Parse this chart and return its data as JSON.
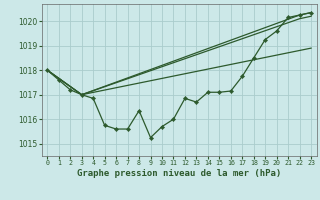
{
  "title": "Graphe pression niveau de la mer (hPa)",
  "bg_color": "#cce8e8",
  "grid_color": "#aacccc",
  "line_color": "#2d5a2d",
  "marker_color": "#2d5a2d",
  "xlim": [
    -0.5,
    23.5
  ],
  "ylim": [
    1014.5,
    1020.7
  ],
  "yticks": [
    1015,
    1016,
    1017,
    1018,
    1019,
    1020
  ],
  "xticks": [
    0,
    1,
    2,
    3,
    4,
    5,
    6,
    7,
    8,
    9,
    10,
    11,
    12,
    13,
    14,
    15,
    16,
    17,
    18,
    19,
    20,
    21,
    22,
    23
  ],
  "series_main": {
    "x": [
      0,
      1,
      2,
      3,
      4,
      5,
      6,
      7,
      8,
      9,
      10,
      11,
      12,
      13,
      14,
      15,
      16,
      17,
      18,
      19,
      20,
      21,
      22,
      23
    ],
    "y": [
      1018.0,
      1017.6,
      1017.2,
      1017.0,
      1016.85,
      1015.75,
      1015.6,
      1015.6,
      1016.35,
      1015.25,
      1015.7,
      1016.0,
      1016.85,
      1016.7,
      1017.1,
      1017.1,
      1017.15,
      1017.75,
      1018.5,
      1019.25,
      1019.6,
      1020.15,
      1020.25,
      1020.35
    ]
  },
  "series_line1": {
    "x": [
      0,
      3,
      22,
      23
    ],
    "y": [
      1018.0,
      1017.0,
      1020.25,
      1020.35
    ]
  },
  "series_line2": {
    "x": [
      0,
      3,
      22,
      23
    ],
    "y": [
      1018.0,
      1017.0,
      1020.1,
      1020.2
    ]
  },
  "series_line3": {
    "x": [
      0,
      3,
      23
    ],
    "y": [
      1018.0,
      1017.0,
      1018.9
    ]
  }
}
